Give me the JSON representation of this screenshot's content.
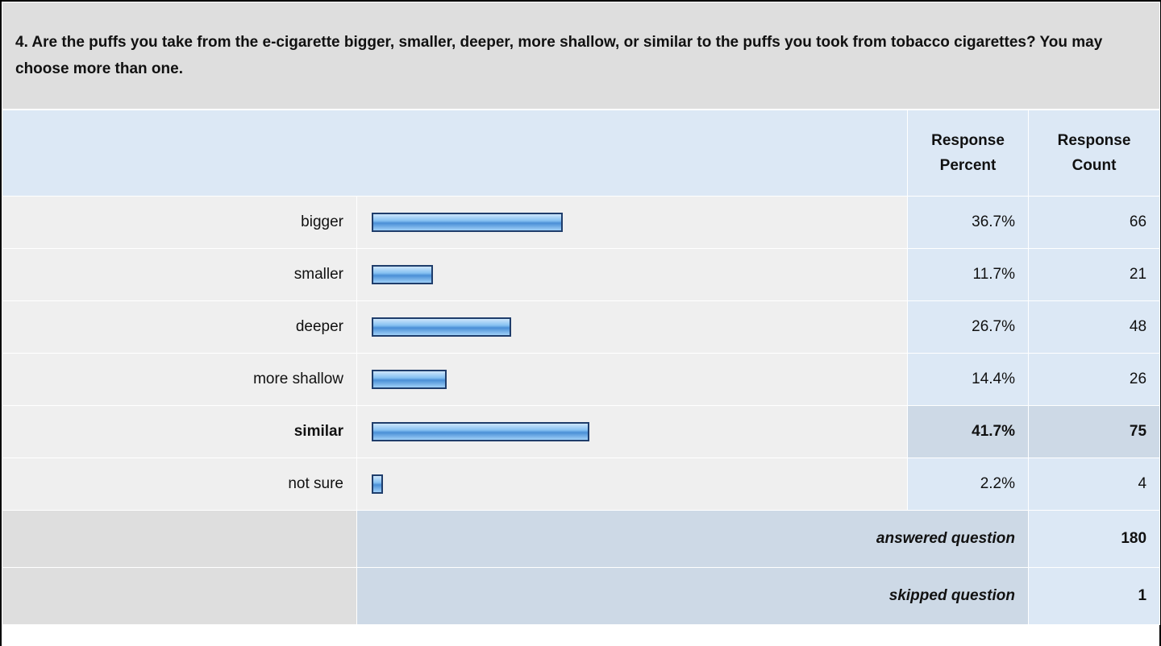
{
  "chart_data": {
    "type": "bar",
    "title": "4. Are the puffs you take from the e-cigarette bigger, smaller, deeper, more shallow, or similar to the puffs you took from tobacco cigarettes? You may choose more than one.",
    "headers": [
      "Response Percent",
      "Response Count"
    ],
    "categories": [
      "bigger",
      "smaller",
      "deeper",
      "more shallow",
      "similar",
      "not sure"
    ],
    "values": [
      36.7,
      11.7,
      26.7,
      14.4,
      41.7,
      2.2
    ],
    "value_labels": [
      "36.7%",
      "11.7%",
      "26.7%",
      "14.4%",
      "41.7%",
      "2.2%"
    ],
    "counts": [
      66,
      21,
      48,
      26,
      75,
      4
    ],
    "xlim": [
      0,
      100
    ],
    "answered": {
      "label": "answered question",
      "value": 180
    },
    "skipped": {
      "label": "skipped question",
      "value": 1
    }
  }
}
